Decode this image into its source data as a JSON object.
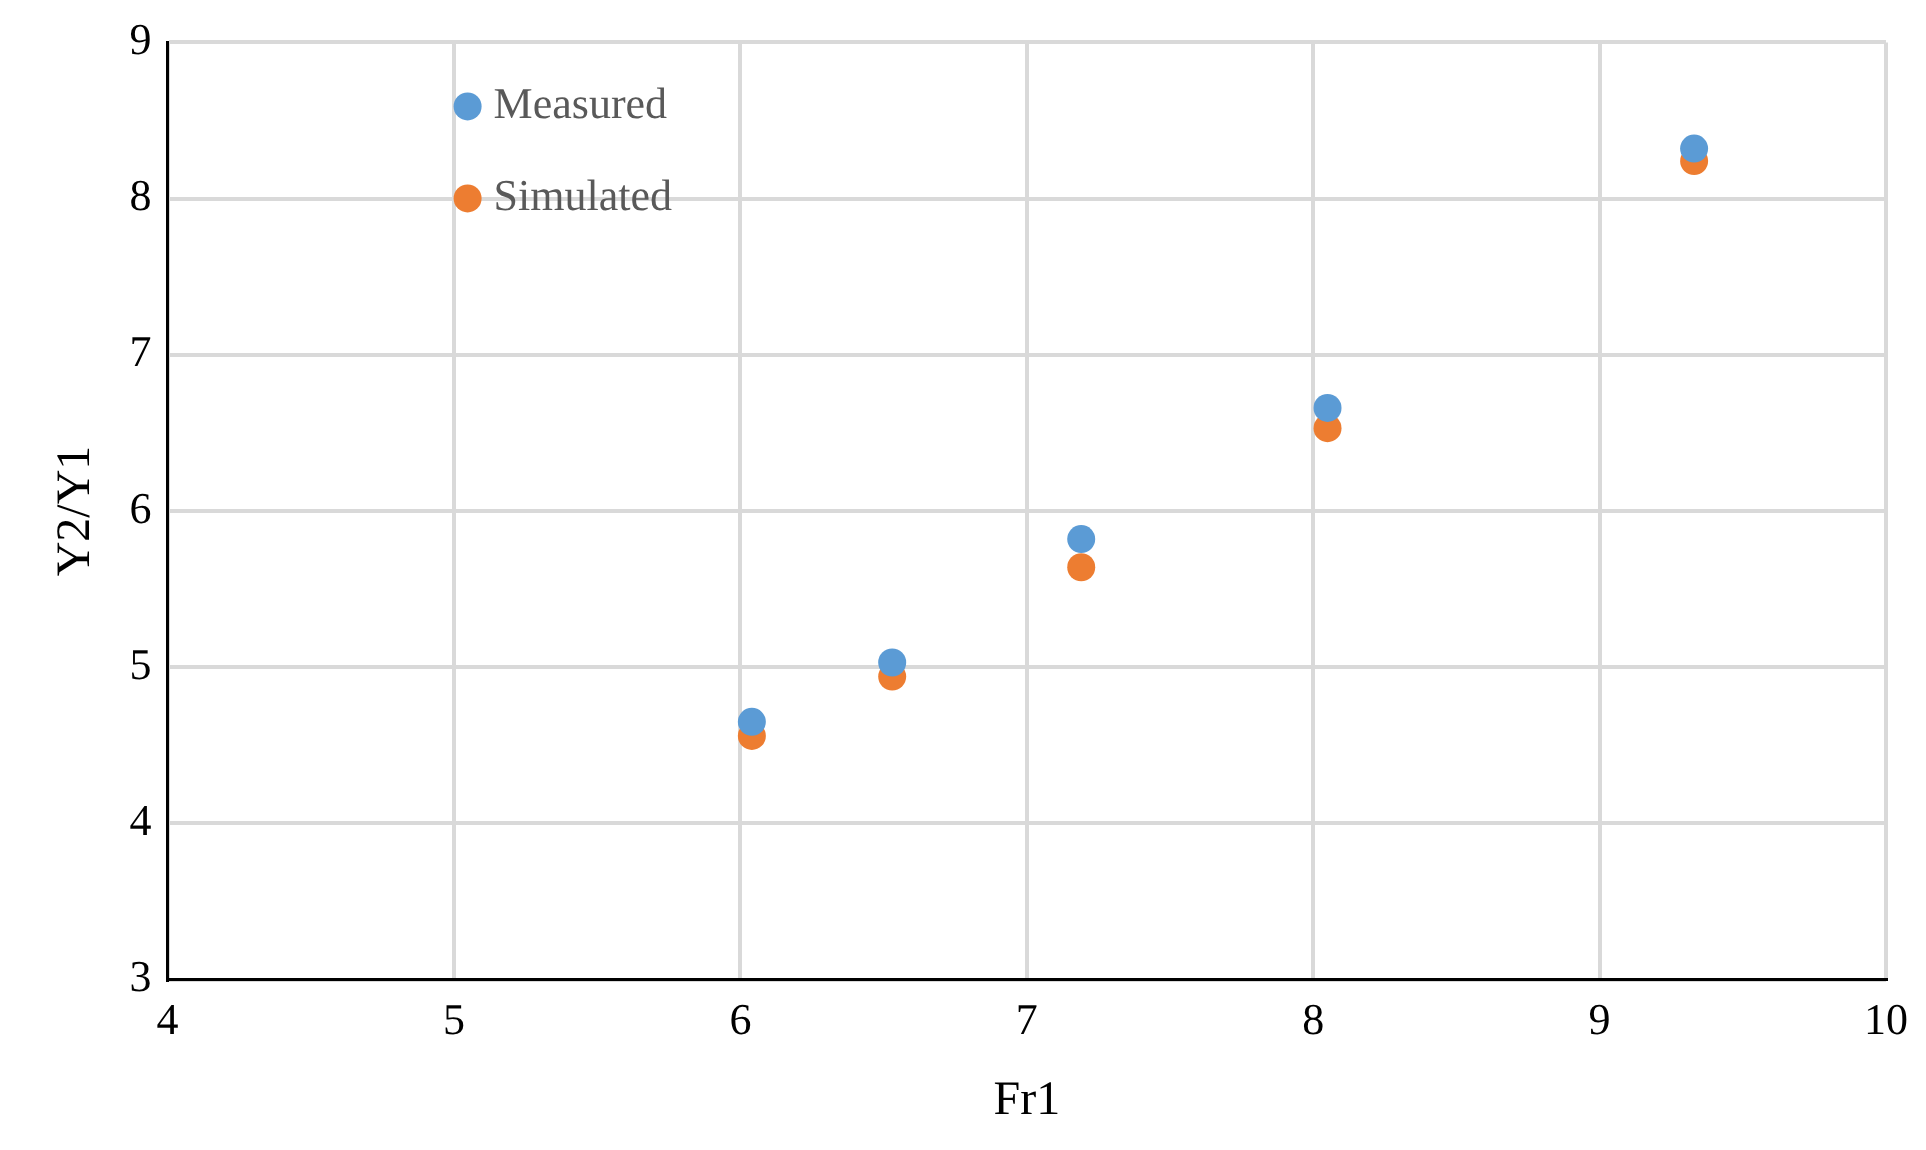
{
  "chart_data": {
    "type": "scatter",
    "xlabel": "Fr1",
    "ylabel": "Y2/Y1",
    "xlim": [
      4,
      10
    ],
    "xticks": [
      4,
      5,
      6,
      7,
      8,
      9,
      10
    ],
    "ylim": [
      3,
      9
    ],
    "yticks": [
      3,
      4,
      5,
      6,
      7,
      8,
      9
    ],
    "grid": true,
    "legend": "top left",
    "marker": "circle",
    "series": [
      {
        "name": "Measured",
        "color": "#5b9bd5",
        "x": [
          6.04,
          6.53,
          7.19,
          8.05,
          9.33
        ],
        "values": [
          4.65,
          5.03,
          5.82,
          6.66,
          8.32
        ]
      },
      {
        "name": "Simulated",
        "color": "#ed7d31",
        "x": [
          6.04,
          6.53,
          7.19,
          8.05,
          9.33
        ],
        "values": [
          4.56,
          4.94,
          5.64,
          6.53,
          8.24
        ]
      }
    ]
  }
}
